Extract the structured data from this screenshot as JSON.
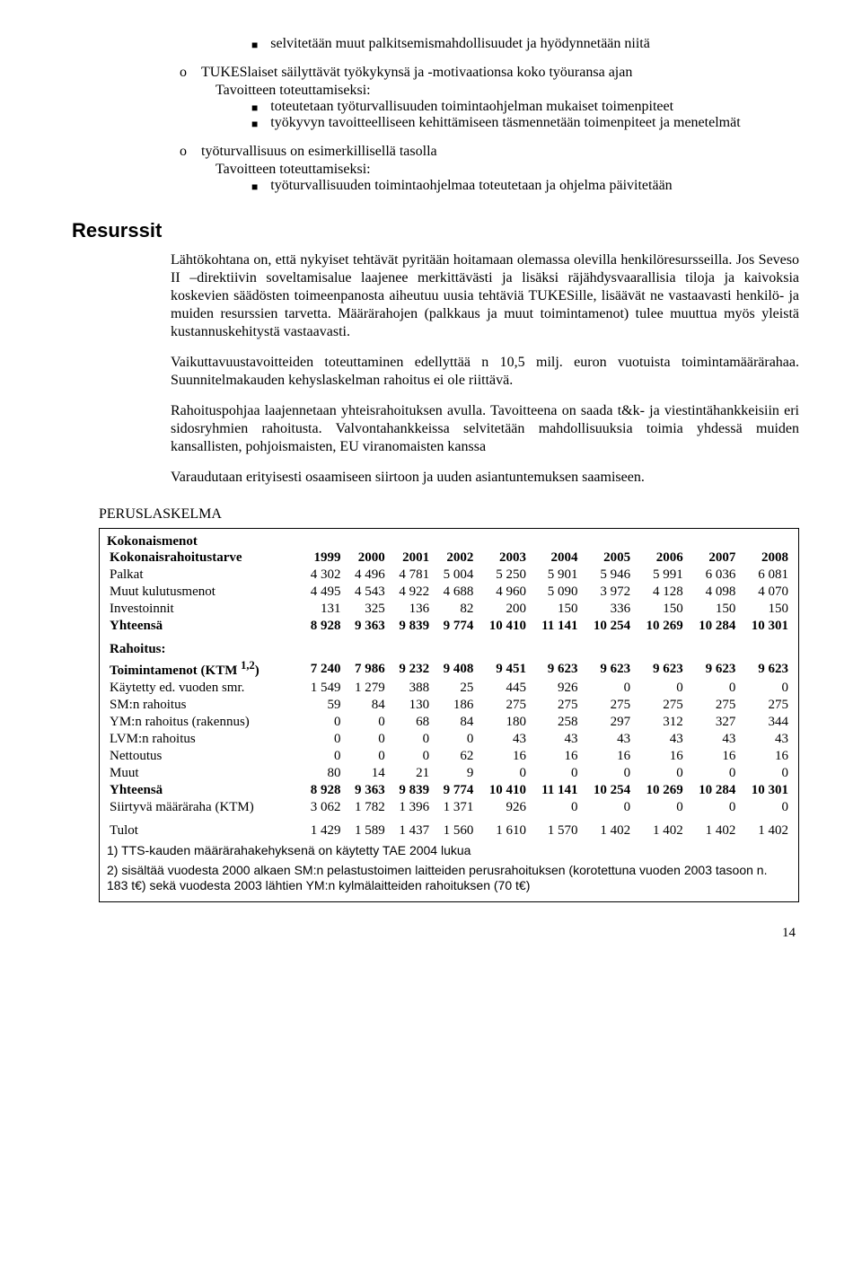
{
  "top": {
    "bullet1": "selvitetään muut palkitsemismahdollisuudet ja hyödynnetään niitä",
    "o1_line1": "TUKESlaiset säilyttävät työkykynsä ja -motivaationsa koko työuransa ajan",
    "o1_line2": "Tavoitteen toteuttamiseksi:",
    "o1_sub1": "toteutetaan työturvallisuuden toimintaohjelman mukaiset toimenpiteet",
    "o1_sub2": "työkyvyn tavoitteelliseen kehittämiseen täsmennetään toimenpiteet ja menetelmät",
    "o2_line1": "työturvallisuus on esimerkillisellä tasolla",
    "o2_line2": "Tavoitteen toteuttamiseksi:",
    "o2_sub1": "työturvallisuuden toimintaohjelmaa toteutetaan ja ohjelma päivitetään"
  },
  "section_heading": "Resurssit",
  "paras": {
    "p1": "Lähtökohtana on, että nykyiset tehtävät pyritään hoitamaan olemassa olevilla henkilöresursseilla. Jos Seveso II –direktiivin soveltamisalue laajenee merkittävästi ja lisäksi räjähdysvaarallisia tiloja ja kaivoksia koskevien säädösten toimeenpanosta aiheutuu uusia tehtäviä TUKESille, lisäävät ne vastaavasti henkilö- ja muiden resurssien tarvetta. Määrärahojen (palkkaus ja muut toimintamenot) tulee muuttua myös yleistä kustannuskehitystä vastaavasti.",
    "p2": "Vaikuttavuustavoitteiden toteuttaminen edellyttää n 10,5 milj. euron vuotuista toimintamäärärahaa. Suunnitelmakauden kehyslaskelman rahoitus ei ole riittävä.",
    "p3": "Rahoituspohjaa laajennetaan yhteisrahoituksen avulla. Tavoitteena on saada t&k- ja viestintähankkeisiin eri sidosryhmien rahoitusta. Valvontahankkeissa selvitetään mahdollisuuksia toimia yhdessä muiden kansallisten, pohjoismaisten, EU viranomaisten kanssa",
    "p4": "Varaudutaan erityisesti osaamiseen siirtoon ja uuden asiantuntemuksen saamiseen."
  },
  "table": {
    "title": "PERUSLASKELMA",
    "header1": "Kokonaismenot",
    "col_label": "Kokonaisrahoitustarve",
    "years": [
      "1999",
      "2000",
      "2001",
      "2002",
      "2003",
      "2004",
      "2005",
      "2006",
      "2007",
      "2008"
    ],
    "rows1": [
      {
        "label": "Palkat",
        "vals": [
          "4 302",
          "4 496",
          "4 781",
          "5 004",
          "5 250",
          "5 901",
          "5 946",
          "5 991",
          "6 036",
          "6 081"
        ]
      },
      {
        "label": "Muut kulutusmenot",
        "vals": [
          "4 495",
          "4 543",
          "4 922",
          "4 688",
          "4 960",
          "5 090",
          "3 972",
          "4 128",
          "4 098",
          "4 070"
        ]
      },
      {
        "label": "Investoinnit",
        "vals": [
          "131",
          "325",
          "136",
          "82",
          "200",
          "150",
          "336",
          "150",
          "150",
          "150"
        ]
      }
    ],
    "sum1": {
      "label": "Yhteensä",
      "vals": [
        "8 928",
        "9 363",
        "9 839",
        "9 774",
        "10 410",
        "11 141",
        "10 254",
        "10 269",
        "10 284",
        "10 301"
      ]
    },
    "header2": "Rahoitus:",
    "rows2": [
      {
        "label": "Toimintamenot (KTM ",
        "sup": "1,2",
        "label2": ")",
        "bold": true,
        "vals": [
          "7 240",
          "7 986",
          "9 232",
          "9 408",
          "9 451",
          "9 623",
          "9 623",
          "9 623",
          "9 623",
          "9 623"
        ]
      },
      {
        "label": "Käytetty ed. vuoden smr.",
        "vals": [
          "1 549",
          "1 279",
          "388",
          "25",
          "445",
          "926",
          "0",
          "0",
          "0",
          "0"
        ]
      },
      {
        "label": "SM:n rahoitus",
        "vals": [
          "59",
          "84",
          "130",
          "186",
          "275",
          "275",
          "275",
          "275",
          "275",
          "275"
        ]
      },
      {
        "label": "YM:n rahoitus (rakennus)",
        "vals": [
          "0",
          "0",
          "68",
          "84",
          "180",
          "258",
          "297",
          "312",
          "327",
          "344"
        ]
      },
      {
        "label": "LVM:n rahoitus",
        "vals": [
          "0",
          "0",
          "0",
          "0",
          "43",
          "43",
          "43",
          "43",
          "43",
          "43"
        ]
      },
      {
        "label": "Nettoutus",
        "vals": [
          "0",
          "0",
          "0",
          "62",
          "16",
          "16",
          "16",
          "16",
          "16",
          "16"
        ]
      },
      {
        "label": "Muut",
        "vals": [
          "80",
          "14",
          "21",
          "9",
          "0",
          "0",
          "0",
          "0",
          "0",
          "0"
        ]
      }
    ],
    "sum2": {
      "label": "Yhteensä",
      "vals": [
        "8 928",
        "9 363",
        "9 839",
        "9 774",
        "10 410",
        "11 141",
        "10 254",
        "10 269",
        "10 284",
        "10 301"
      ]
    },
    "row_siirtyva": {
      "label": "Siirtyvä määräraha (KTM)",
      "vals": [
        "3 062",
        "1 782",
        "1 396",
        "1 371",
        "926",
        "0",
        "0",
        "0",
        "0",
        "0"
      ]
    },
    "row_tulot": {
      "label": "Tulot",
      "vals": [
        "1 429",
        "1 589",
        "1 437",
        "1 560",
        "1 610",
        "1 570",
        "1 402",
        "1 402",
        "1 402",
        "1 402"
      ]
    },
    "footnote1": "1) TTS-kauden määrärahakehyksenä on käytetty TAE 2004 lukua",
    "footnote2": "2) sisältää vuodesta 2000 alkaen SM:n pelastustoimen laitteiden perusrahoituksen (korotettuna vuoden 2003 tasoon n. 183 t€) sekä vuodesta 2003 lähtien YM:n kylmälaitteiden rahoituksen (70 t€)"
  },
  "page_number": "14"
}
